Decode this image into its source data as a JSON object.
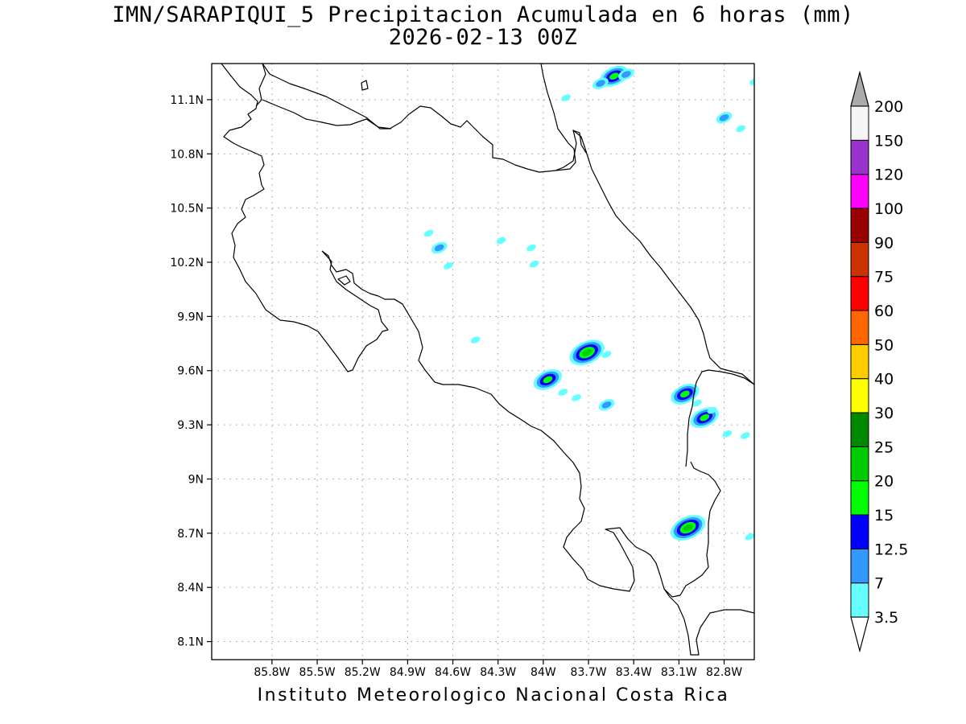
{
  "title": {
    "line1": "IMN/SARAPIQUI_5 Precipitacion Acumulada en 6 horas (mm)",
    "line2": "2026-02-13 00Z"
  },
  "footer": "Instituto Meteorologico Nacional Costa Rica",
  "map": {
    "lon_range": [
      -86.2,
      -82.6
    ],
    "lat_range": [
      8.0,
      11.3
    ],
    "lon_ticks": [
      {
        "value": -85.8,
        "label": "85.8W"
      },
      {
        "value": -85.5,
        "label": "85.5W"
      },
      {
        "value": -85.2,
        "label": "85.2W"
      },
      {
        "value": -84.9,
        "label": "84.9W"
      },
      {
        "value": -84.6,
        "label": "84.6W"
      },
      {
        "value": -84.3,
        "label": "84.3W"
      },
      {
        "value": -84.0,
        "label": "84W"
      },
      {
        "value": -83.7,
        "label": "83.7W"
      },
      {
        "value": -83.4,
        "label": "83.4W"
      },
      {
        "value": -83.1,
        "label": "83.1W"
      },
      {
        "value": -82.8,
        "label": "82.8W"
      }
    ],
    "lat_ticks": [
      {
        "value": 8.1,
        "label": "8.1N"
      },
      {
        "value": 8.4,
        "label": "8.4N"
      },
      {
        "value": 8.7,
        "label": "8.7N"
      },
      {
        "value": 9.0,
        "label": "9N"
      },
      {
        "value": 9.3,
        "label": "9.3N"
      },
      {
        "value": 9.6,
        "label": "9.6N"
      },
      {
        "value": 9.9,
        "label": "9.9N"
      },
      {
        "value": 10.2,
        "label": "10.2N"
      },
      {
        "value": 10.5,
        "label": "10.5N"
      },
      {
        "value": 10.8,
        "label": "10.8N"
      },
      {
        "value": 11.1,
        "label": "11.1N"
      }
    ],
    "grid": "dotted",
    "precip_cells": [
      {
        "lon": -83.53,
        "lat": 11.23,
        "lvl": 3
      },
      {
        "lon": -83.62,
        "lat": 11.19,
        "lvl": 1
      },
      {
        "lon": -83.85,
        "lat": 11.11,
        "lvl": 0
      },
      {
        "lon": -83.45,
        "lat": 11.24,
        "lvl": 1
      },
      {
        "lon": -82.8,
        "lat": 11.0,
        "lvl": 1
      },
      {
        "lon": -82.69,
        "lat": 10.94,
        "lvl": 0
      },
      {
        "lon": -82.6,
        "lat": 11.2,
        "lvl": 0
      },
      {
        "lon": -84.69,
        "lat": 10.28,
        "lvl": 1
      },
      {
        "lon": -84.76,
        "lat": 10.36,
        "lvl": 0
      },
      {
        "lon": -84.63,
        "lat": 10.18,
        "lvl": 0
      },
      {
        "lon": -84.28,
        "lat": 10.32,
        "lvl": 0
      },
      {
        "lon": -84.08,
        "lat": 10.28,
        "lvl": 0
      },
      {
        "lon": -84.06,
        "lat": 10.19,
        "lvl": 0
      },
      {
        "lon": -84.45,
        "lat": 9.77,
        "lvl": 0
      },
      {
        "lon": -83.71,
        "lat": 9.7,
        "lvl": 4
      },
      {
        "lon": -83.97,
        "lat": 9.55,
        "lvl": 3
      },
      {
        "lon": -83.87,
        "lat": 9.48,
        "lvl": 0
      },
      {
        "lon": -83.78,
        "lat": 9.45,
        "lvl": 0
      },
      {
        "lon": -83.58,
        "lat": 9.69,
        "lvl": 0
      },
      {
        "lon": -83.58,
        "lat": 9.41,
        "lvl": 1
      },
      {
        "lon": -83.06,
        "lat": 9.47,
        "lvl": 3
      },
      {
        "lon": -82.98,
        "lat": 9.42,
        "lvl": 0
      },
      {
        "lon": -82.93,
        "lat": 9.34,
        "lvl": 3
      },
      {
        "lon": -82.88,
        "lat": 9.38,
        "lvl": 0
      },
      {
        "lon": -82.78,
        "lat": 9.25,
        "lvl": 0
      },
      {
        "lon": -82.66,
        "lat": 9.24,
        "lvl": 0
      },
      {
        "lon": -83.04,
        "lat": 8.73,
        "lvl": 4
      },
      {
        "lon": -82.63,
        "lat": 8.68,
        "lvl": 0
      }
    ]
  },
  "colorbar": {
    "labels": [
      "3.5",
      "7",
      "12.5",
      "15",
      "20",
      "25",
      "30",
      "40",
      "50",
      "60",
      "75",
      "90",
      "100",
      "120",
      "150",
      "200"
    ],
    "colors": [
      "#66ffff",
      "#3399ff",
      "#0000ff",
      "#00ff00",
      "#00cc00",
      "#008800",
      "#ffff00",
      "#ffcc00",
      "#ff6600",
      "#ff0000",
      "#cc3300",
      "#990000",
      "#ff00ff",
      "#9933cc",
      "#f5f5f5"
    ],
    "under_color": "#ffffff",
    "over_color": "#aaaaaa"
  }
}
